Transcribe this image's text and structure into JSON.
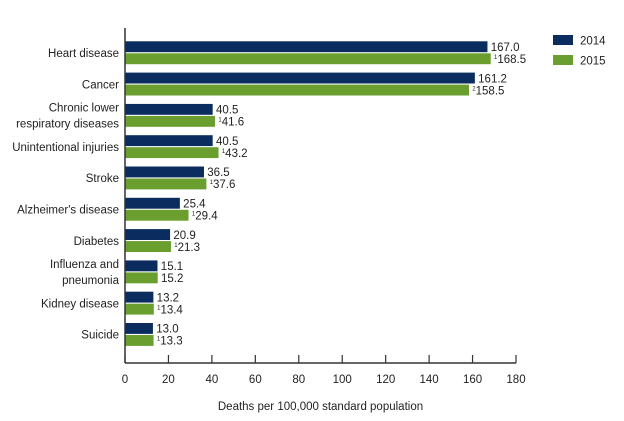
{
  "chart_data": {
    "type": "bar",
    "orientation": "horizontal",
    "title": "",
    "xlabel": "Deaths per 100,000 standard population",
    "ylabel": "",
    "xlim": [
      0,
      180
    ],
    "xticks": [
      0,
      20,
      40,
      60,
      80,
      100,
      120,
      140,
      160,
      180
    ],
    "grid": false,
    "legend_position": "top-right",
    "categories": [
      [
        "Heart disease"
      ],
      [
        "Cancer"
      ],
      [
        "Chronic lower",
        "respiratory diseases"
      ],
      [
        "Unintentional injuries"
      ],
      [
        "Stroke"
      ],
      [
        "Alzheimer's disease"
      ],
      [
        "Diabetes"
      ],
      [
        "Influenza and",
        "pneumonia"
      ],
      [
        "Kidney disease"
      ],
      [
        "Suicide"
      ]
    ],
    "series": [
      {
        "name": "2014",
        "color": "#0b2c5e",
        "values": [
          167.0,
          161.2,
          40.5,
          40.5,
          36.5,
          25.4,
          20.9,
          15.1,
          13.2,
          13.0
        ],
        "labels": [
          "167.0",
          "161.2",
          "40.5",
          "40.5",
          "36.5",
          "25.4",
          "20.9",
          "15.1",
          "13.2",
          "13.0"
        ],
        "notes": [
          "",
          "",
          "",
          "",
          "",
          "",
          "",
          "",
          "",
          ""
        ]
      },
      {
        "name": "2015",
        "color": "#6a9e2f",
        "values": [
          168.5,
          158.5,
          41.6,
          43.2,
          37.6,
          29.4,
          21.3,
          15.2,
          13.4,
          13.3
        ],
        "labels": [
          "168.5",
          "158.5",
          "41.6",
          "43.2",
          "37.6",
          "29.4",
          "21.3",
          "15.2",
          "13.4",
          "13.3"
        ],
        "notes": [
          "1",
          "2",
          "1",
          "1",
          "1",
          "1",
          "1",
          "",
          "1",
          "1"
        ]
      }
    ]
  }
}
